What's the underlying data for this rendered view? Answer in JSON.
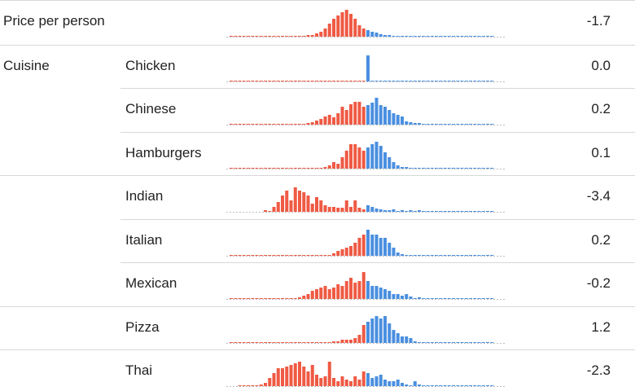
{
  "colors": {
    "negative": "#ef5a44",
    "positive": "#4a8fe0",
    "baseline": "#bdbdbd",
    "separator": "#d8d8d8"
  },
  "chart_data": {
    "type": "bar",
    "rows": [
      {
        "group": "Price per person",
        "label": "",
        "value": "-1.7",
        "neg": [
          1,
          1,
          1,
          1,
          1,
          1,
          1,
          1,
          1,
          1,
          1,
          1,
          1,
          1,
          1,
          1,
          1,
          1,
          1,
          1,
          1,
          1,
          1,
          1,
          1,
          2,
          2,
          4,
          6,
          10,
          16,
          22,
          26,
          30,
          33,
          28,
          22,
          14,
          10
        ],
        "pos": [
          8,
          6,
          5,
          3,
          2,
          2,
          1,
          1,
          1,
          1,
          1,
          1,
          1,
          1,
          1,
          1,
          1,
          1,
          1,
          1,
          1,
          1,
          1,
          1,
          1,
          1,
          1,
          1,
          1,
          1
        ]
      },
      {
        "group": "Cuisine",
        "label": "Chicken",
        "value": "0.0",
        "neg": [
          1,
          1,
          1,
          1,
          1,
          1,
          1,
          1,
          1,
          1,
          1,
          1,
          1,
          1,
          1,
          1,
          1,
          1,
          1,
          1,
          1,
          1,
          1,
          1,
          1,
          1,
          1,
          1,
          1,
          1,
          1,
          1,
          1,
          1,
          1,
          1,
          1,
          1,
          1
        ],
        "pos": [
          32,
          1,
          1,
          1,
          1,
          1,
          1,
          1,
          1,
          1,
          1,
          1,
          1,
          1,
          1,
          1,
          1,
          1,
          1,
          1,
          1,
          1,
          1,
          1,
          1,
          1,
          1,
          1,
          1,
          1
        ]
      },
      {
        "group": "",
        "label": "Chinese",
        "value": "0.2",
        "neg": [
          1,
          1,
          1,
          1,
          1,
          1,
          1,
          1,
          1,
          1,
          1,
          1,
          1,
          1,
          1,
          1,
          1,
          1,
          1,
          1,
          1,
          1,
          2,
          3,
          5,
          7,
          10,
          12,
          9,
          14,
          22,
          18,
          25,
          28,
          28,
          22
        ],
        "pos": [
          24,
          27,
          33,
          24,
          22,
          18,
          14,
          12,
          10,
          4,
          3,
          2,
          2,
          1,
          1,
          1,
          1,
          1,
          1,
          1,
          1,
          1,
          1,
          1,
          1,
          1,
          1,
          1,
          1,
          1
        ]
      },
      {
        "group": "",
        "label": "Hamburgers",
        "value": "0.1",
        "neg": [
          1,
          1,
          1,
          1,
          1,
          1,
          1,
          1,
          1,
          1,
          1,
          1,
          1,
          1,
          1,
          1,
          1,
          1,
          1,
          1,
          1,
          1,
          1,
          1,
          1,
          1,
          2,
          4,
          8,
          6,
          14,
          22,
          30,
          30,
          26,
          22
        ],
        "pos": [
          26,
          30,
          34,
          28,
          20,
          14,
          8,
          4,
          2,
          2,
          1,
          1,
          1,
          1,
          1,
          1,
          1,
          1,
          1,
          1,
          1,
          1,
          1,
          1,
          1,
          1,
          1,
          1,
          1,
          1
        ]
      },
      {
        "group": "",
        "label": "Indian",
        "value": "-3.4",
        "neg": [
          2,
          1,
          6,
          12,
          20,
          26,
          14,
          30,
          26,
          24,
          20,
          10,
          18,
          14,
          8,
          6,
          6,
          5,
          5,
          14,
          6,
          14,
          5,
          3
        ],
        "pos": [
          8,
          6,
          4,
          3,
          2,
          2,
          3,
          1,
          2,
          1,
          2,
          1,
          2,
          1,
          1,
          1,
          1,
          1,
          1,
          1,
          1,
          1,
          1,
          1,
          1,
          1,
          1,
          1,
          1,
          1
        ]
      },
      {
        "group": "",
        "label": "Italian",
        "value": "0.2",
        "neg": [
          1,
          1,
          1,
          1,
          1,
          1,
          1,
          1,
          1,
          1,
          1,
          1,
          1,
          1,
          1,
          1,
          1,
          1,
          1,
          1,
          1,
          1,
          1,
          1,
          1,
          1,
          1,
          1,
          1,
          1,
          1,
          1,
          1,
          1,
          1,
          1,
          1,
          1,
          3,
          6,
          8,
          10,
          12,
          16,
          22,
          26
        ],
        "pos": [
          32,
          26,
          26,
          22,
          22,
          16,
          10,
          4,
          2,
          1,
          1,
          1,
          1,
          1,
          1,
          1,
          1,
          1,
          1,
          1,
          1,
          1,
          1,
          1,
          1,
          1,
          1,
          1,
          1,
          1
        ]
      },
      {
        "group": "",
        "label": "Mexican",
        "value": "-0.2",
        "neg": [
          1,
          1,
          1,
          1,
          1,
          1,
          1,
          1,
          1,
          1,
          1,
          1,
          1,
          1,
          1,
          1,
          1,
          1,
          1,
          1,
          1,
          1,
          1,
          1,
          2,
          4,
          6,
          10,
          12,
          14,
          16,
          12,
          14,
          18,
          16,
          22,
          26,
          20,
          22,
          34
        ],
        "pos": [
          22,
          16,
          16,
          14,
          12,
          10,
          6,
          6,
          4,
          6,
          3,
          1,
          2,
          1,
          1,
          1,
          1,
          1,
          1,
          1,
          1,
          1,
          1,
          1,
          1,
          1,
          1,
          1,
          1,
          1
        ]
      },
      {
        "group": "",
        "label": "Pizza",
        "value": "1.2",
        "neg": [
          1,
          1,
          1,
          1,
          1,
          1,
          1,
          1,
          1,
          1,
          1,
          1,
          1,
          1,
          1,
          1,
          1,
          1,
          1,
          1,
          1,
          1,
          1,
          1,
          1,
          1,
          1,
          1,
          1,
          1,
          1,
          1,
          1,
          1,
          1,
          1,
          1,
          2,
          2,
          4,
          4,
          4,
          6,
          10,
          22
        ],
        "pos": [
          26,
          30,
          34,
          30,
          34,
          24,
          16,
          12,
          8,
          8,
          6,
          2,
          1,
          1,
          1,
          1,
          1,
          1,
          1,
          1,
          1,
          1,
          1,
          1,
          1,
          1,
          1,
          1,
          1,
          1
        ]
      },
      {
        "group": "",
        "label": "Thai",
        "value": "-2.3",
        "neg": [
          1,
          1,
          1,
          1,
          1,
          2,
          4,
          10,
          16,
          22,
          22,
          24,
          26,
          28,
          30,
          24,
          18,
          26,
          14,
          10,
          12,
          30,
          10,
          6,
          12,
          8,
          6,
          12,
          8,
          18
        ],
        "pos": [
          16,
          10,
          12,
          14,
          8,
          6,
          6,
          8,
          4,
          2,
          1,
          6,
          2,
          1,
          1,
          1,
          1,
          1,
          1,
          1,
          1,
          1,
          1,
          1,
          1,
          1,
          1,
          1,
          1,
          1
        ]
      }
    ]
  }
}
